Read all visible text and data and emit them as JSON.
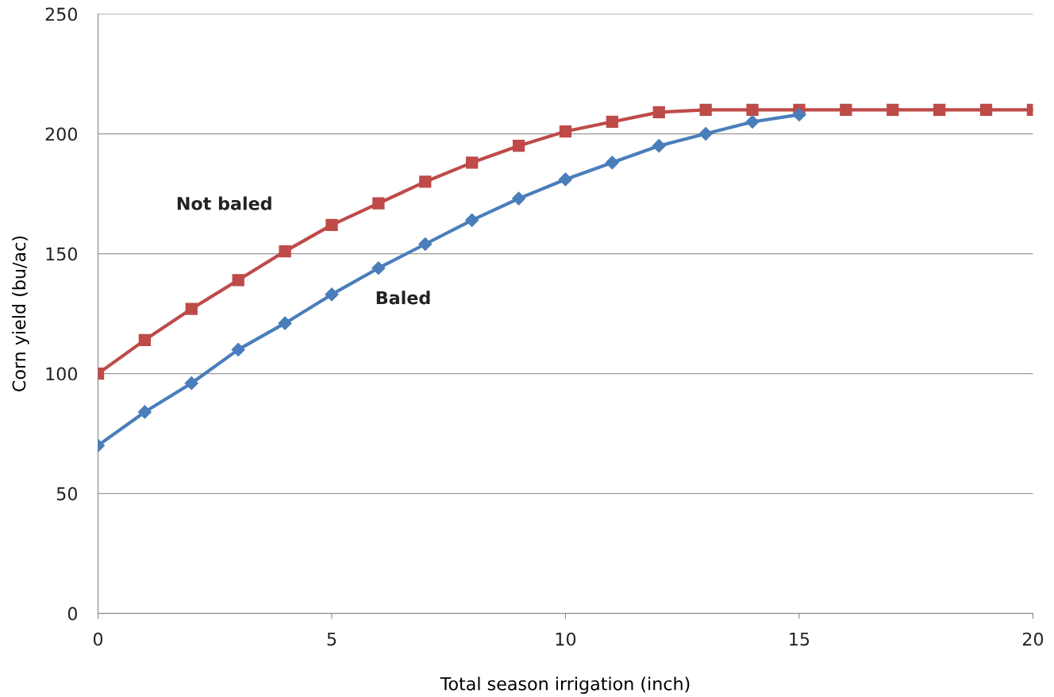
{
  "chart_data": {
    "type": "line",
    "xlabel": "Total season irrigation (inch)",
    "ylabel": "Corn yield (bu/ac)",
    "x": [
      0,
      1,
      2,
      3,
      4,
      5,
      6,
      7,
      8,
      9,
      10,
      11,
      12,
      13,
      14,
      15,
      16,
      17,
      18,
      19,
      20
    ],
    "series": [
      {
        "name": "Baled",
        "color": "#4a7ebb",
        "marker": "diamond",
        "values": [
          70,
          84,
          96,
          110,
          121,
          133,
          144,
          154,
          164,
          173,
          181,
          188,
          195,
          200,
          205,
          208,
          null,
          null,
          null,
          null,
          null
        ]
      },
      {
        "name": "Not baled",
        "color": "#be4b48",
        "marker": "square",
        "values": [
          100,
          114,
          127,
          139,
          151,
          162,
          171,
          180,
          188,
          195,
          201,
          205,
          209,
          210,
          210,
          210,
          210,
          210,
          210,
          210,
          210
        ]
      }
    ],
    "xlim": [
      0,
      20
    ],
    "xticks": [
      0,
      5,
      10,
      15,
      20
    ],
    "ylim": [
      0,
      250
    ],
    "yticks": [
      0,
      50,
      100,
      150,
      200,
      250
    ],
    "grid": "y",
    "legend": false,
    "line_style": "solid"
  }
}
